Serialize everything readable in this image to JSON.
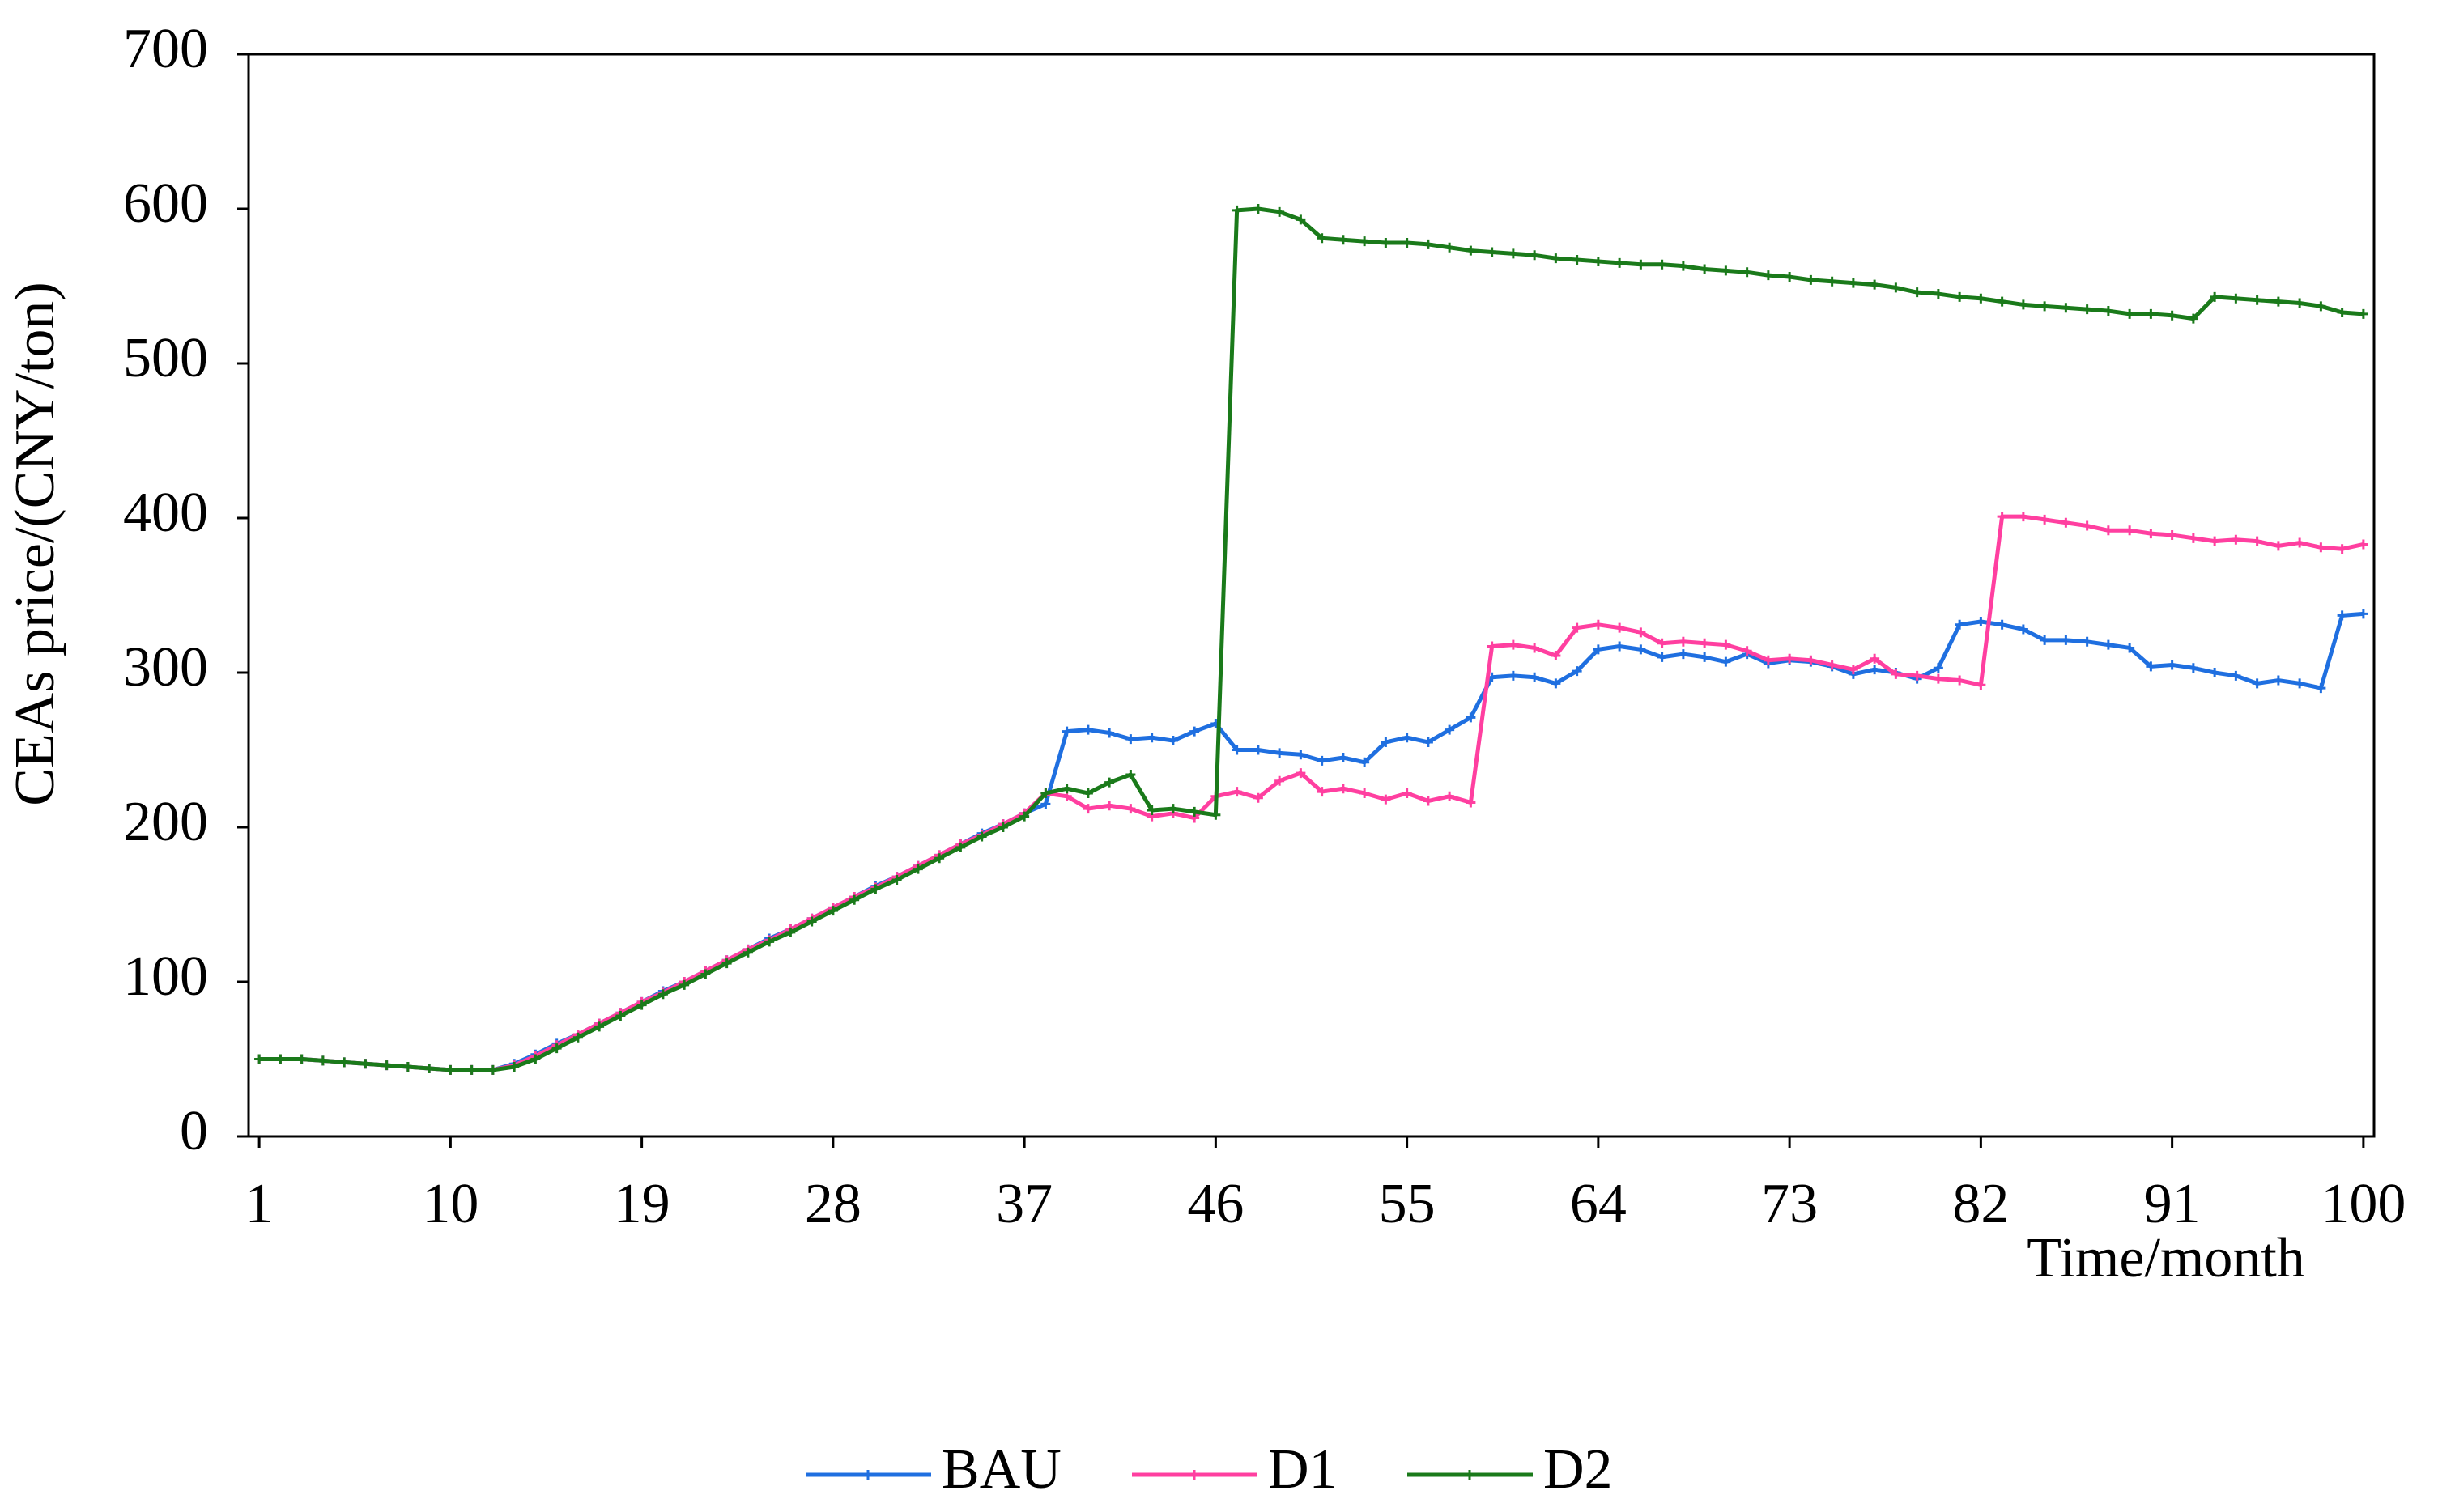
{
  "chart_data": {
    "type": "line",
    "x_label": "Time/month",
    "y_label": "CEAs price/(CNY/ton)",
    "x": [
      1,
      2,
      3,
      4,
      5,
      6,
      7,
      8,
      9,
      10,
      11,
      12,
      13,
      14,
      15,
      16,
      17,
      18,
      19,
      20,
      21,
      22,
      23,
      24,
      25,
      26,
      27,
      28,
      29,
      30,
      31,
      32,
      33,
      34,
      35,
      36,
      37,
      38,
      39,
      40,
      41,
      42,
      43,
      44,
      45,
      46,
      47,
      48,
      49,
      50,
      51,
      52,
      53,
      54,
      55,
      56,
      57,
      58,
      59,
      60,
      61,
      62,
      63,
      64,
      65,
      66,
      67,
      68,
      69,
      70,
      71,
      72,
      73,
      74,
      75,
      76,
      77,
      78,
      79,
      80,
      81,
      82,
      83,
      84,
      85,
      86,
      87,
      88,
      89,
      90,
      91,
      92,
      93,
      94,
      95,
      96,
      97,
      98,
      99,
      100
    ],
    "series": [
      {
        "name": "BAU",
        "color": "#1f6fe0",
        "values": [
          50,
          50,
          50,
          49,
          48,
          47,
          46,
          45,
          44,
          43,
          43,
          43,
          47,
          53,
          60,
          66,
          73,
          80,
          87,
          94,
          100,
          107,
          114,
          121,
          128,
          134,
          141,
          148,
          155,
          162,
          168,
          175,
          182,
          189,
          196,
          202,
          209,
          215,
          262,
          263,
          261,
          257,
          258,
          256,
          262,
          267,
          250,
          250,
          248,
          247,
          243,
          245,
          242,
          255,
          258,
          255,
          263,
          271,
          297,
          298,
          297,
          293,
          301,
          315,
          317,
          315,
          310,
          312,
          310,
          307,
          312,
          306,
          308,
          307,
          304,
          299,
          302,
          300,
          296,
          303,
          331,
          333,
          331,
          328,
          321,
          321,
          320,
          318,
          316,
          304,
          305,
          303,
          300,
          298,
          293,
          295,
          293,
          290,
          337,
          338
        ]
      },
      {
        "name": "D1",
        "color": "#ff3fa0",
        "values": [
          50,
          50,
          50,
          49,
          48,
          47,
          46,
          45,
          44,
          43,
          43,
          43,
          46,
          52,
          59,
          66,
          73,
          80,
          87,
          93,
          100,
          107,
          114,
          121,
          127,
          134,
          141,
          148,
          155,
          161,
          168,
          175,
          182,
          189,
          195,
          202,
          209,
          222,
          220,
          212,
          214,
          212,
          207,
          209,
          206,
          220,
          223,
          219,
          230,
          235,
          223,
          225,
          222,
          218,
          222,
          217,
          220,
          216,
          317,
          318,
          316,
          311,
          329,
          331,
          329,
          326,
          319,
          320,
          319,
          318,
          314,
          308,
          309,
          308,
          305,
          302,
          309,
          299,
          298,
          296,
          295,
          292,
          401,
          401,
          399,
          397,
          395,
          392,
          392,
          390,
          389,
          387,
          385,
          386,
          385,
          382,
          384,
          381,
          380,
          383
        ]
      },
      {
        "name": "D2",
        "color": "#1a7a1a",
        "values": [
          50,
          50,
          50,
          49,
          48,
          47,
          46,
          45,
          44,
          43,
          43,
          43,
          45,
          50,
          57,
          64,
          71,
          78,
          85,
          92,
          98,
          105,
          112,
          119,
          126,
          132,
          139,
          146,
          153,
          160,
          166,
          173,
          180,
          187,
          194,
          200,
          207,
          222,
          225,
          222,
          229,
          234,
          211,
          212,
          210,
          208,
          599,
          600,
          598,
          593,
          581,
          580,
          579,
          578,
          578,
          577,
          575,
          573,
          572,
          571,
          570,
          568,
          567,
          566,
          565,
          564,
          564,
          563,
          561,
          560,
          559,
          557,
          556,
          554,
          553,
          552,
          551,
          549,
          546,
          545,
          543,
          542,
          540,
          538,
          537,
          536,
          535,
          534,
          532,
          532,
          531,
          529,
          543,
          542,
          541,
          540,
          539,
          537,
          533,
          532
        ]
      }
    ],
    "xlim": [
      0.5,
      100.5
    ],
    "xticks": [
      1,
      10,
      19,
      28,
      37,
      46,
      55,
      64,
      73,
      82,
      91,
      100
    ],
    "ylim": [
      0,
      700
    ],
    "yticks": [
      0,
      100,
      200,
      300,
      400,
      500,
      600,
      700
    ],
    "grid": false,
    "legend": "bottom"
  }
}
